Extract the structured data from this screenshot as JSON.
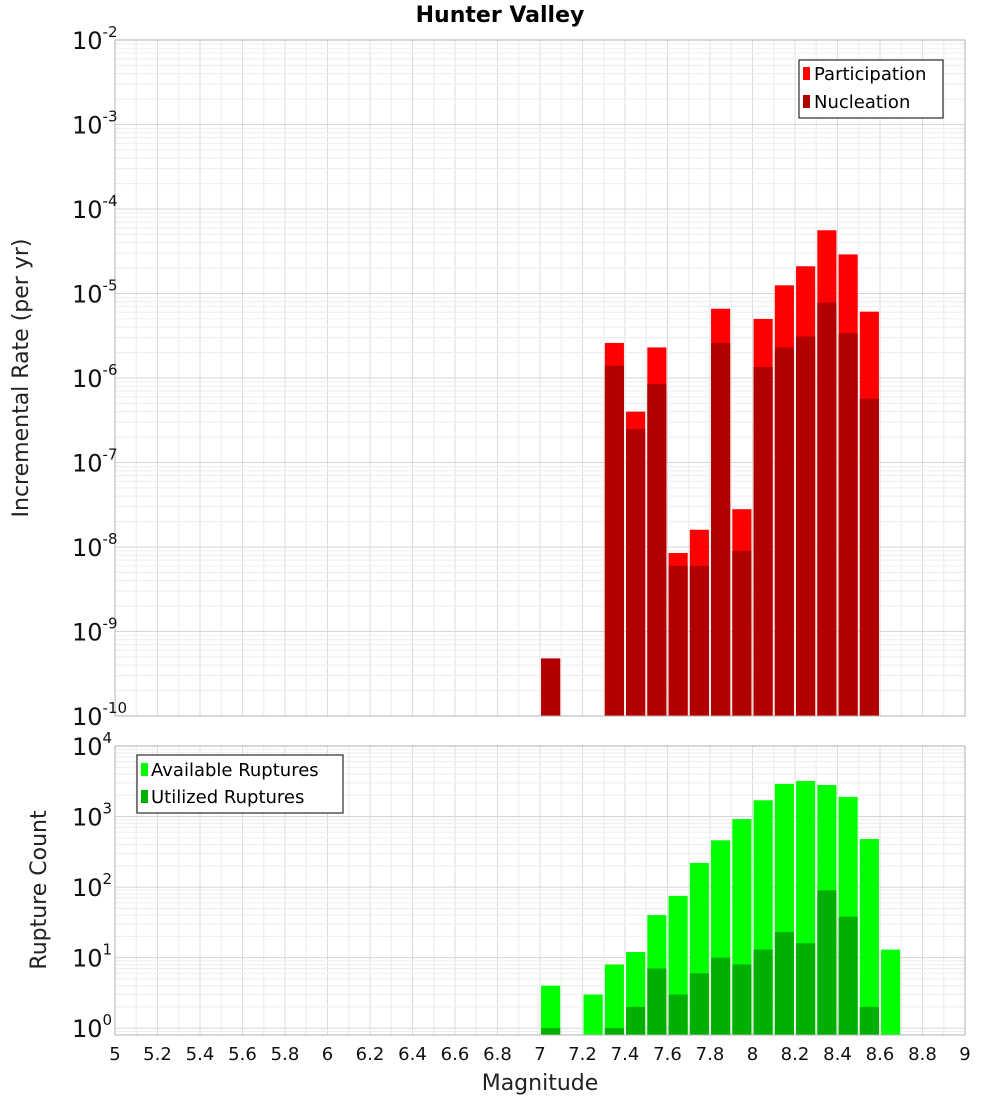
{
  "chart_data": [
    {
      "type": "bar",
      "title": "Hunter Valley",
      "xlabel": "",
      "ylabel": "Incremental Rate (per yr)",
      "yscale": "log",
      "xlim": [
        5,
        9
      ],
      "ylim": [
        1e-10,
        0.01
      ],
      "ytick_exponents": [
        -10,
        -9,
        -8,
        -7,
        -6,
        -5,
        -4,
        -3,
        -2
      ],
      "grid": true,
      "legend_position": "top-right",
      "bar_width": 0.09,
      "series": [
        {
          "name": "Participation",
          "color": "#ff0000",
          "x": [
            7.05,
            7.35,
            7.45,
            7.55,
            7.65,
            7.75,
            7.85,
            7.95,
            8.05,
            8.15,
            8.25,
            8.35,
            8.45,
            8.55
          ],
          "values": [
            4.8e-10,
            2.6e-06,
            4e-07,
            2.3e-06,
            8.5e-09,
            1.6e-08,
            6.6e-06,
            2.8e-08,
            5e-06,
            1.25e-05,
            2.1e-05,
            5.6e-05,
            2.9e-05,
            6.1e-06
          ]
        },
        {
          "name": "Nucleation",
          "color": "#b20000",
          "x": [
            7.05,
            7.35,
            7.45,
            7.55,
            7.65,
            7.75,
            7.85,
            7.95,
            8.05,
            8.15,
            8.25,
            8.35,
            8.45,
            8.55
          ],
          "values": [
            4.8e-10,
            1.4e-06,
            2.5e-07,
            8.5e-07,
            6e-09,
            6e-09,
            2.6e-06,
            9e-09,
            1.35e-06,
            2.3e-06,
            3.1e-06,
            7.8e-06,
            3.4e-06,
            5.7e-07
          ]
        }
      ]
    },
    {
      "type": "bar",
      "title": "",
      "xlabel": "Magnitude",
      "ylabel": "Rupture Count",
      "yscale": "log",
      "xlim": [
        5,
        9
      ],
      "ylim": [
        0.8,
        10000
      ],
      "ytick_exponents": [
        0,
        1,
        2,
        3,
        4
      ],
      "x_ticks": [
        "5",
        "5.2",
        "5.4",
        "5.6",
        "5.8",
        "6",
        "6.2",
        "6.4",
        "6.6",
        "6.8",
        "7",
        "7.2",
        "7.4",
        "7.6",
        "7.8",
        "8",
        "8.2",
        "8.4",
        "8.6",
        "8.8",
        "9"
      ],
      "grid": true,
      "legend_position": "top-left",
      "bar_width": 0.09,
      "series": [
        {
          "name": "Available Ruptures",
          "color": "#00ff00",
          "x": [
            7.05,
            7.25,
            7.35,
            7.45,
            7.55,
            7.65,
            7.75,
            7.85,
            7.95,
            8.05,
            8.15,
            8.25,
            8.35,
            8.45,
            8.55,
            8.65
          ],
          "values": [
            4,
            3,
            8,
            12,
            40,
            75,
            220,
            460,
            920,
            1700,
            2900,
            3200,
            2800,
            1900,
            480,
            13
          ]
        },
        {
          "name": "Utilized Ruptures",
          "color": "#00b000",
          "x": [
            7.05,
            7.35,
            7.45,
            7.55,
            7.65,
            7.75,
            7.85,
            7.95,
            8.05,
            8.15,
            8.25,
            8.35,
            8.45,
            8.55
          ],
          "values": [
            1,
            1,
            2,
            7,
            3,
            6,
            10,
            8,
            13,
            23,
            16,
            90,
            38,
            2
          ]
        }
      ]
    }
  ]
}
